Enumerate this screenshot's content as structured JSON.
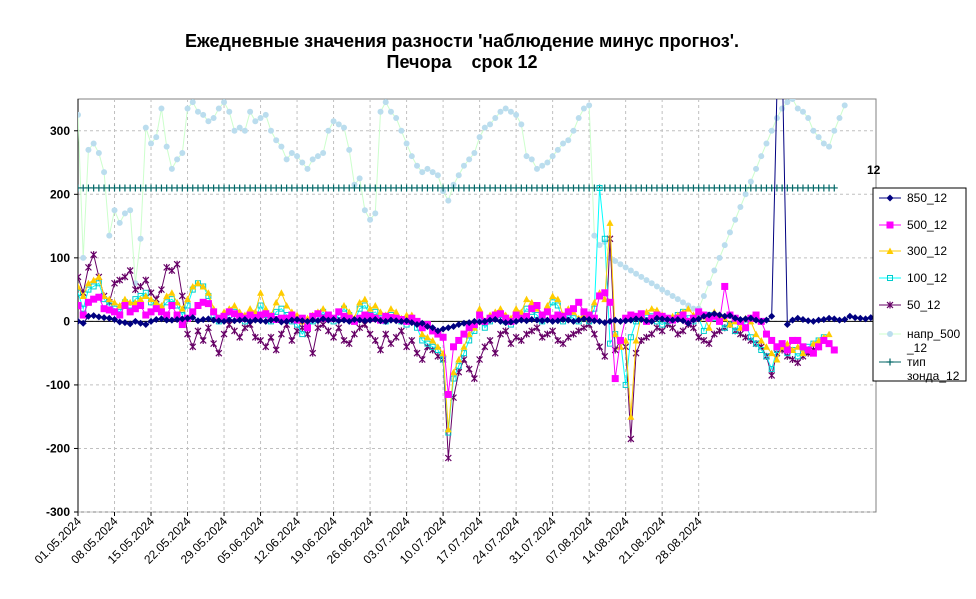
{
  "chart_data": {
    "type": "line",
    "title_line1": "Ежедневные значения разности 'наблюдение минус прогноз'.",
    "title_line2": "Печора    срок 12",
    "ylim": [
      -300,
      350
    ],
    "yticks": [
      -300,
      -200,
      -100,
      0,
      100,
      200,
      300
    ],
    "xlabels": [
      "01.05.2024",
      "08.05.2024",
      "15.05.2024",
      "22.05.2024",
      "29.05.2024",
      "05.06.2024",
      "12.06.2024",
      "19.06.2024",
      "26.06.2024",
      "03.07.2024",
      "10.07.2024",
      "17.07.2024",
      "24.07.2024",
      "31.07.2024",
      "07.08.2024",
      "14.08.2024",
      "21.08.2024",
      "28.08.2024"
    ],
    "grid": true,
    "legend_position": "right",
    "annotation": "12",
    "series": [
      {
        "name": "850_12",
        "color": "#000080",
        "values": [
          0,
          -3,
          8,
          9,
          7,
          6,
          5,
          3,
          -1,
          -2,
          -4,
          0,
          -3,
          -5,
          0,
          3,
          4,
          2,
          2,
          3,
          4,
          5,
          6,
          1,
          3,
          4,
          2,
          1,
          0,
          2,
          1,
          2,
          3,
          0,
          2,
          1,
          0,
          2,
          3,
          -1,
          0,
          2,
          3,
          1,
          0,
          2,
          1,
          4,
          2,
          3,
          1,
          2,
          0,
          3,
          2,
          1,
          2,
          3,
          1,
          0,
          2,
          1,
          0,
          1,
          -2,
          -5,
          -3,
          -8,
          -10,
          -15,
          -12,
          -10,
          -8,
          -5,
          -3,
          -2,
          0,
          -1,
          0,
          2,
          3,
          0,
          -2,
          -1,
          0,
          2,
          1,
          3,
          2,
          1,
          2,
          0,
          1,
          3,
          2,
          0,
          2,
          4,
          3,
          1,
          0,
          -2,
          0,
          2,
          0,
          1,
          2,
          4,
          3,
          1,
          0,
          5,
          4,
          3,
          2,
          3,
          1,
          -3,
          2,
          4,
          8,
          10,
          12,
          10,
          8,
          9,
          5,
          3,
          4,
          5,
          2,
          0,
          2,
          8,
          360,
          420,
          -5,
          2,
          5,
          3,
          1,
          0,
          2,
          3,
          5,
          4,
          2,
          3,
          8,
          6,
          5,
          4,
          6,
          7
        ]
      },
      {
        "name": "500_12",
        "color": "#FF00FF",
        "values": [
          25,
          10,
          30,
          35,
          38,
          20,
          18,
          15,
          10,
          25,
          15,
          20,
          25,
          10,
          15,
          20,
          15,
          10,
          25,
          10,
          -5,
          5,
          15,
          25,
          30,
          28,
          15,
          5,
          8,
          15,
          12,
          8,
          5,
          10,
          6,
          10,
          12,
          8,
          3,
          5,
          5,
          10,
          2,
          5,
          -10,
          8,
          12,
          5,
          10,
          5,
          15,
          8,
          5,
          0,
          5,
          10,
          8,
          5,
          2,
          8,
          6,
          5,
          3,
          0,
          5,
          0,
          -10,
          -5,
          -15,
          -20,
          -25,
          -115,
          -40,
          -30,
          -20,
          -10,
          -5,
          10,
          0,
          5,
          10,
          12,
          5,
          0,
          10,
          5,
          8,
          20,
          25,
          10,
          15,
          5,
          10,
          8,
          15,
          20,
          30,
          15,
          10,
          5,
          40,
          45,
          30,
          -90,
          -30,
          5,
          10,
          8,
          12,
          0,
          5,
          10,
          8,
          5,
          2,
          5,
          10,
          0,
          5,
          15,
          10,
          5,
          8,
          0,
          55,
          10,
          5,
          0,
          -10,
          5,
          10,
          0,
          -20,
          -30,
          -40,
          -35,
          -45,
          -30,
          -30,
          -40,
          -45,
          -50,
          -40,
          -30,
          -35,
          -45
        ]
      },
      {
        "name": "300_12",
        "color": "#FFCC00",
        "values": [
          55,
          40,
          60,
          65,
          70,
          40,
          35,
          30,
          25,
          35,
          30,
          30,
          35,
          40,
          35,
          30,
          25,
          40,
          45,
          30,
          20,
          35,
          55,
          60,
          55,
          45,
          20,
          5,
          15,
          20,
          25,
          15,
          10,
          20,
          15,
          45,
          20,
          10,
          30,
          45,
          25,
          15,
          10,
          0,
          5,
          10,
          15,
          20,
          10,
          5,
          15,
          25,
          15,
          5,
          30,
          35,
          20,
          25,
          15,
          10,
          20,
          15,
          5,
          10,
          10,
          0,
          -20,
          -25,
          -30,
          -40,
          -50,
          -170,
          -80,
          -60,
          -40,
          -20,
          -10,
          20,
          0,
          10,
          15,
          20,
          10,
          5,
          20,
          15,
          35,
          30,
          20,
          10,
          25,
          40,
          35,
          10,
          20,
          15,
          5,
          10,
          5,
          30,
          45,
          35,
          155,
          -20,
          -40,
          -30,
          -150,
          -30,
          10,
          15,
          20,
          18,
          10,
          5,
          8,
          10,
          15,
          20,
          10,
          5,
          8,
          -10,
          15,
          10,
          5,
          -5,
          0,
          -10,
          5,
          0,
          -20,
          -30,
          -40,
          -50,
          -60,
          -40,
          -35,
          -45,
          -40,
          -50,
          -45,
          -35,
          -30,
          -25,
          -20
        ]
      },
      {
        "name": "100_12",
        "color": "#00CCCC",
        "values": [
          45,
          20,
          50,
          55,
          60,
          35,
          25,
          20,
          15,
          30,
          25,
          35,
          40,
          45,
          30,
          25,
          20,
          30,
          35,
          25,
          10,
          25,
          50,
          60,
          55,
          40,
          10,
          0,
          5,
          10,
          15,
          5,
          0,
          10,
          5,
          25,
          10,
          0,
          15,
          20,
          10,
          0,
          -5,
          -20,
          -10,
          0,
          5,
          15,
          5,
          0,
          10,
          20,
          10,
          0,
          20,
          25,
          10,
          15,
          5,
          0,
          10,
          5,
          0,
          -5,
          0,
          -10,
          -30,
          -35,
          -40,
          -45,
          -60,
          -175,
          -90,
          -70,
          -50,
          -30,
          -15,
          10,
          -10,
          0,
          5,
          10,
          0,
          -5,
          10,
          5,
          20,
          15,
          10,
          0,
          15,
          30,
          25,
          0,
          10,
          5,
          0,
          5,
          0,
          20,
          210,
          130,
          -35,
          -20,
          -30,
          -100,
          -25,
          0,
          5,
          10,
          8,
          0,
          -5,
          0,
          5,
          10,
          15,
          5,
          0,
          5,
          -15,
          10,
          5,
          0,
          -10,
          -5,
          -15,
          0,
          -5,
          -25,
          -35,
          -45,
          -55,
          -75,
          -45,
          -40,
          -50,
          -45,
          -55,
          -50,
          -40,
          -35,
          -30,
          -25
        ]
      },
      {
        "name": "50_12",
        "color": "#660066",
        "values": [
          70,
          45,
          85,
          105,
          70,
          40,
          30,
          60,
          65,
          70,
          80,
          50,
          55,
          65,
          45,
          35,
          50,
          85,
          80,
          90,
          40,
          -20,
          -40,
          -15,
          -30,
          -10,
          -35,
          -50,
          -20,
          -5,
          -15,
          -25,
          -10,
          -5,
          -25,
          -30,
          -40,
          -25,
          -45,
          -20,
          -5,
          -30,
          -15,
          -10,
          -20,
          -50,
          -10,
          -5,
          -15,
          -25,
          -10,
          -30,
          -35,
          -20,
          -10,
          -5,
          -20,
          -30,
          -45,
          -20,
          -35,
          -25,
          -15,
          -40,
          -30,
          -50,
          -60,
          -40,
          -45,
          -55,
          -60,
          -215,
          -120,
          -80,
          -60,
          -75,
          -90,
          -60,
          -40,
          -30,
          -50,
          -20,
          -15,
          -35,
          -25,
          -30,
          -20,
          -15,
          -10,
          -25,
          -20,
          -15,
          -30,
          -35,
          -25,
          -20,
          -15,
          -10,
          -5,
          -20,
          -40,
          -55,
          130,
          -45,
          -30,
          -40,
          -185,
          -50,
          -30,
          -25,
          -20,
          -10,
          -15,
          -5,
          -10,
          -20,
          -15,
          -5,
          -10,
          -25,
          -30,
          -35,
          -20,
          -15,
          -10,
          -5,
          -15,
          -20,
          -25,
          -30,
          -35,
          -40,
          -55,
          -85,
          -50,
          -45,
          -55,
          -60,
          -65,
          -55,
          -50,
          -45,
          -40
        ]
      },
      {
        "name": "напр_500_12",
        "color": "#BBDDEE",
        "values": [
          325,
          100,
          270,
          280,
          265,
          235,
          135,
          175,
          155,
          170,
          175,
          60,
          130,
          305,
          280,
          290,
          335,
          275,
          240,
          255,
          265,
          335,
          345,
          330,
          325,
          315,
          320,
          335,
          345,
          330,
          300,
          305,
          300,
          330,
          315,
          320,
          325,
          300,
          285,
          275,
          255,
          265,
          260,
          250,
          240,
          255,
          260,
          265,
          300,
          315,
          310,
          305,
          270,
          215,
          225,
          175,
          160,
          170,
          330,
          345,
          330,
          320,
          300,
          280,
          260,
          245,
          235,
          240,
          235,
          230,
          205,
          190,
          215,
          230,
          245,
          255,
          265,
          290,
          305,
          310,
          320,
          330,
          335,
          330,
          325,
          310,
          260,
          255,
          240,
          245,
          250,
          260,
          270,
          280,
          285,
          300,
          320,
          335,
          340,
          135,
          120,
          125,
          100,
          95,
          90,
          85,
          80,
          75,
          70,
          65,
          60,
          55,
          50,
          45,
          40,
          35,
          30,
          25,
          20,
          20,
          40,
          60,
          80,
          100,
          120,
          140,
          160,
          180,
          200,
          220,
          240,
          260,
          280,
          300,
          320,
          335,
          345,
          350,
          335,
          330,
          320,
          300,
          290,
          280,
          275,
          300,
          320,
          340
        ]
      },
      {
        "name": "тип зонда_12",
        "color": "#006666",
        "values": [
          210,
          210,
          210,
          210,
          210,
          210,
          210,
          210,
          210,
          210,
          210,
          210,
          210,
          210,
          210,
          210,
          210,
          210,
          210,
          210,
          210,
          210,
          210,
          210,
          210,
          210,
          210,
          210,
          210,
          210,
          210,
          210,
          210,
          210,
          210,
          210,
          210,
          210,
          210,
          210,
          210,
          210,
          210,
          210,
          210,
          210,
          210,
          210,
          210,
          210,
          210,
          210,
          210,
          210,
          210,
          210,
          210,
          210,
          210,
          210,
          210,
          210,
          210,
          210,
          210,
          210,
          210,
          210,
          210,
          210,
          210,
          210,
          210,
          210,
          210,
          210,
          210,
          210,
          210,
          210,
          210,
          210,
          210,
          210,
          210,
          210,
          210,
          210,
          210,
          210,
          210,
          210,
          210,
          210,
          210,
          210,
          210,
          210,
          210,
          210,
          210,
          210,
          210,
          210,
          210,
          210,
          210,
          210,
          210,
          210,
          210,
          210,
          210,
          210,
          210,
          210,
          210,
          210,
          210,
          210,
          210,
          210,
          210,
          210,
          210,
          210,
          210,
          210,
          210,
          210,
          210,
          210,
          210,
          210,
          210,
          210,
          210,
          210,
          210,
          210,
          210,
          210,
          210,
          210,
          210,
          210
        ]
      }
    ],
    "legend": [
      "850_12",
      "500_12",
      "300_12",
      "100_12",
      "50_12",
      "напр_500 _12",
      "тип зонда_12"
    ]
  }
}
